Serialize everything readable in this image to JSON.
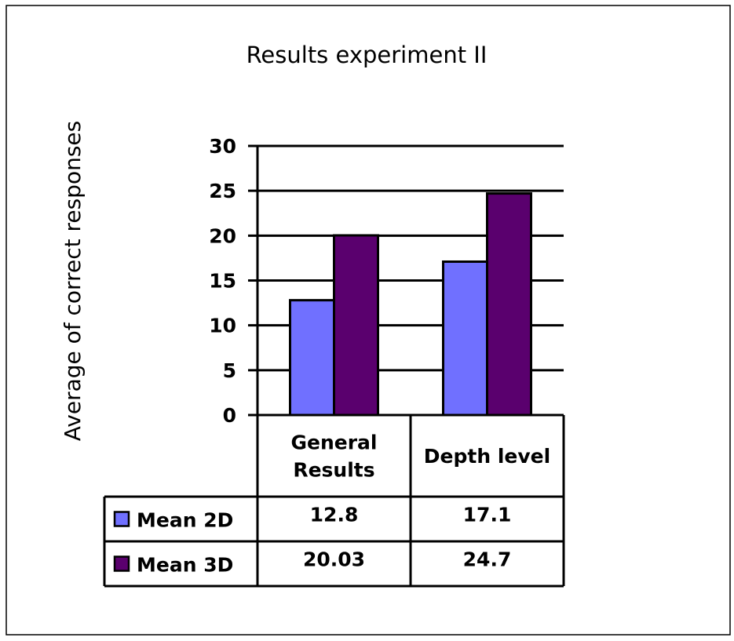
{
  "chart_data": {
    "type": "bar",
    "title": "Results experiment II",
    "xlabel": "",
    "ylabel": "Average of correct responses",
    "ylim": [
      0,
      30
    ],
    "yticks": [
      0,
      5,
      10,
      15,
      20,
      25,
      30
    ],
    "grid": true,
    "legend_placement": "data-table",
    "categories": [
      [
        "General",
        "Results"
      ],
      [
        "Depth level"
      ]
    ],
    "series": [
      {
        "name": "Mean 2D",
        "values": [
          12.8,
          17.1
        ],
        "labels": [
          "12.8",
          "17.1"
        ],
        "color": "#7070ff"
      },
      {
        "name": "Mean 3D",
        "values": [
          20.03,
          24.7
        ],
        "labels": [
          "20.03",
          "24.7"
        ],
        "color": "#5a006e"
      }
    ]
  }
}
